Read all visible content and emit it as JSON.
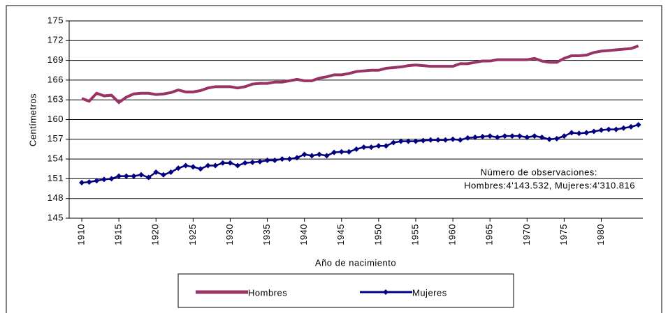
{
  "chart_data": {
    "type": "line",
    "y_label": "Centímetros",
    "x_label": "Año de nacimiento",
    "annotation": [
      "Número de observaciones:",
      "Hombres:4'143.532, Mujeres:4'310.816"
    ],
    "x": [
      1910,
      1911,
      1912,
      1913,
      1914,
      1915,
      1916,
      1917,
      1918,
      1919,
      1920,
      1921,
      1922,
      1923,
      1924,
      1925,
      1926,
      1927,
      1928,
      1929,
      1930,
      1931,
      1932,
      1933,
      1934,
      1935,
      1936,
      1937,
      1938,
      1939,
      1940,
      1941,
      1942,
      1943,
      1944,
      1945,
      1946,
      1947,
      1948,
      1949,
      1950,
      1951,
      1952,
      1953,
      1954,
      1955,
      1956,
      1957,
      1958,
      1959,
      1960,
      1961,
      1962,
      1963,
      1964,
      1965,
      1966,
      1967,
      1968,
      1969,
      1970,
      1971,
      1972,
      1973,
      1974,
      1975,
      1976,
      1977,
      1978,
      1979,
      1980,
      1981,
      1982,
      1983,
      1984,
      1985
    ],
    "series": [
      {
        "name": "Hombres",
        "color": "#993366",
        "marker": "square",
        "values": [
          163.2,
          162.8,
          164.0,
          163.6,
          163.7,
          162.6,
          163.4,
          163.9,
          164.0,
          164.0,
          163.8,
          163.9,
          164.1,
          164.5,
          164.2,
          164.2,
          164.4,
          164.8,
          165.0,
          165.0,
          165.0,
          164.8,
          165.0,
          165.4,
          165.5,
          165.5,
          165.7,
          165.7,
          165.9,
          166.1,
          165.9,
          165.9,
          166.3,
          166.5,
          166.8,
          166.8,
          167.0,
          167.3,
          167.4,
          167.5,
          167.5,
          167.8,
          167.9,
          168.0,
          168.2,
          168.3,
          168.2,
          168.1,
          168.1,
          168.1,
          168.1,
          168.5,
          168.5,
          168.7,
          168.9,
          168.9,
          169.1,
          169.1,
          169.1,
          169.1,
          169.1,
          169.3,
          168.9,
          168.7,
          168.7,
          169.3,
          169.7,
          169.7,
          169.8,
          170.2,
          170.4,
          170.5,
          170.6,
          170.7,
          170.8,
          171.2
        ]
      },
      {
        "name": "Mujeres",
        "color": "#000080",
        "marker": "diamond",
        "values": [
          150.4,
          150.5,
          150.7,
          150.9,
          151.0,
          151.4,
          151.4,
          151.4,
          151.6,
          151.2,
          152.0,
          151.6,
          152.0,
          152.6,
          153.0,
          152.8,
          152.5,
          153.0,
          153.0,
          153.4,
          153.4,
          153.0,
          153.4,
          153.5,
          153.6,
          153.8,
          153.8,
          154.0,
          154.0,
          154.2,
          154.7,
          154.5,
          154.7,
          154.5,
          155.0,
          155.1,
          155.1,
          155.5,
          155.8,
          155.8,
          156.0,
          156.0,
          156.5,
          156.7,
          156.7,
          156.7,
          156.8,
          156.9,
          156.9,
          156.9,
          157.0,
          156.9,
          157.2,
          157.3,
          157.4,
          157.5,
          157.3,
          157.5,
          157.5,
          157.5,
          157.3,
          157.5,
          157.3,
          157.0,
          157.1,
          157.5,
          158.0,
          157.9,
          158.0,
          158.2,
          158.4,
          158.5,
          158.5,
          158.7,
          158.9,
          159.2
        ]
      }
    ],
    "xlim": [
      1908.3,
      1985.6
    ],
    "xticks": [
      1910,
      1915,
      1920,
      1925,
      1930,
      1935,
      1940,
      1945,
      1950,
      1955,
      1960,
      1965,
      1970,
      1975,
      1980
    ],
    "ylim": [
      145,
      175
    ],
    "yticks": [
      145,
      148,
      151,
      154,
      157,
      160,
      163,
      166,
      169,
      172,
      175
    ],
    "grid": true,
    "legend": "bottom"
  }
}
